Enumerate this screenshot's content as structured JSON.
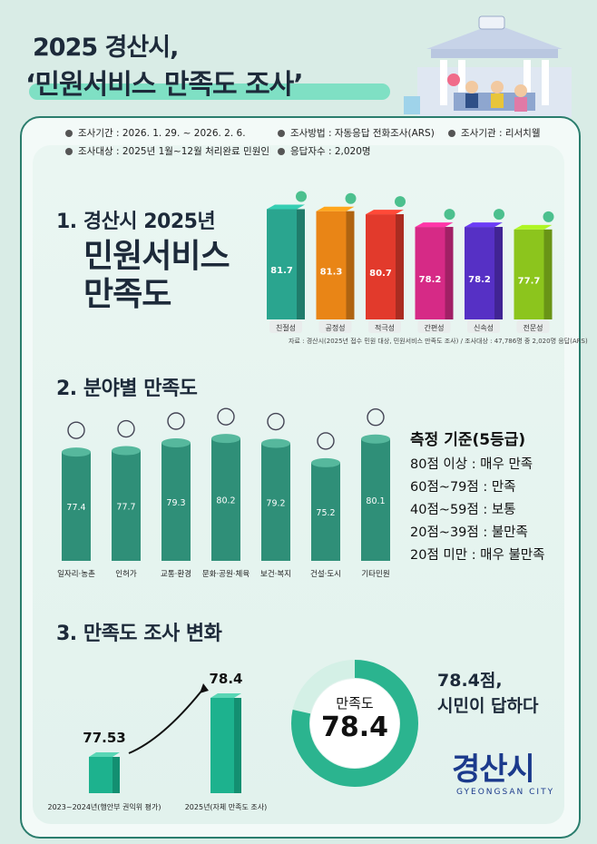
{
  "header": {
    "title_line1": "2025 경산시,",
    "title_line2": "‘민원서비스 만족도 조사’"
  },
  "info": {
    "period": "조사기간 : 2026. 1. 29. ~ 2026. 2. 6.",
    "method": "조사방법 : 자동응답 전화조사(ARS)",
    "agency": "조사기관 : 리서치웰",
    "target": "조사대상 : 2025년 1월~12월 처리완료 민원인",
    "respondents": "응답자수 : 2,020명"
  },
  "section1": {
    "heading": "1. 경산시 2025년",
    "big_line1": "민원서비스",
    "big_line2": "만족도",
    "source": "자료 : 경산시(2025년 접수 민원 대상, 민원서비스 만족도 조사) / 조사대상 : 47,786명 중 2,020명 응답(ARS)"
  },
  "section2": {
    "heading": "2. 분야별 만족도",
    "criteria_title": "측정 기준(5등급)",
    "criteria": [
      "80점 이상 : 매우 만족",
      "60점~79점 : 만족",
      "40점~59점 : 보통",
      "20점~39점 : 불만족",
      "20점 미만 : 매우 불만족"
    ]
  },
  "section3": {
    "heading": "3. 만족도 조사 변화",
    "donut_label": "만족도",
    "donut_value": "78.4",
    "donut_fraction": 0.784,
    "answer_line1": "78.4점,",
    "answer_line2": "시민이 답하다"
  },
  "logo": {
    "name": "경산시",
    "sub": "GYEONGSAN CITY"
  },
  "colors": {
    "teal": "#2aa58f",
    "orange": "#e98516",
    "red": "#e23a2c",
    "magenta": "#d62a86",
    "purple": "#5630c5",
    "green": "#8cc51d",
    "bar_green": "#2f8f78",
    "donut": "#2bb48f"
  },
  "chart_data": [
    {
      "type": "bar",
      "categories": [
        "친절성",
        "공정성",
        "적극성",
        "간편성",
        "신속성",
        "전문성"
      ],
      "values": [
        81.7,
        81.3,
        80.7,
        78.2,
        78.2,
        77.7
      ]
    },
    {
      "type": "bar",
      "categories": [
        "일자리·농촌",
        "인허가",
        "교통·환경",
        "문화·공원·체육",
        "보건·복지",
        "건설·도시",
        "기타민원"
      ],
      "values": [
        77.4,
        77.7,
        79.3,
        80.2,
        79.2,
        75.2,
        80.1
      ]
    },
    {
      "type": "bar",
      "categories": [
        "2023~2024년(행안부 권익위 평가)",
        "2025년(자체 만족도 조사)"
      ],
      "values": [
        77.53,
        78.4
      ]
    }
  ]
}
